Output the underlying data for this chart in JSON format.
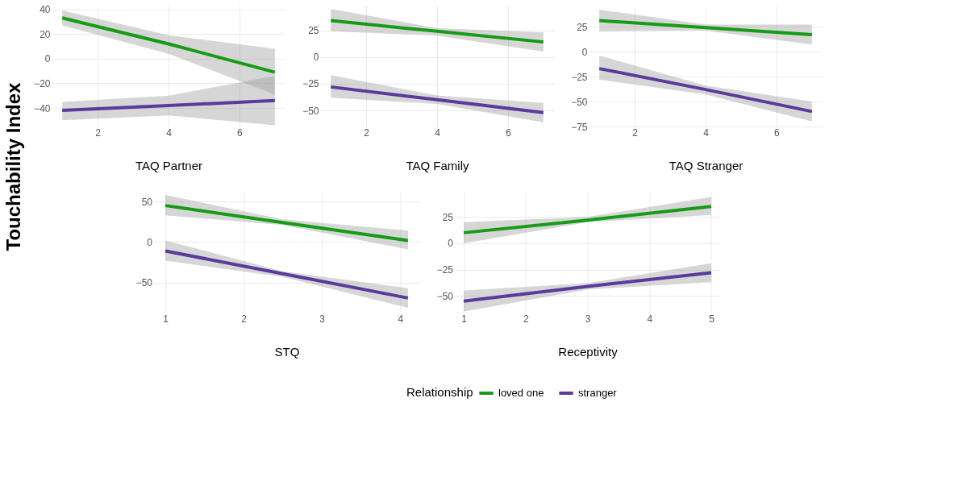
{
  "chart_data": [
    {
      "type": "line",
      "xlabel": "TAQ Partner",
      "ylabel": "Touchability Index",
      "legend": "bottom",
      "legend_title": "Relationship",
      "grid": true,
      "xlim": [
        0.7,
        7.3
      ],
      "xticks": [
        2,
        4,
        6
      ],
      "ylim": [
        -55,
        43
      ],
      "yticks": [
        -40,
        -20,
        0,
        20,
        40
      ],
      "x": [
        1,
        4,
        7
      ],
      "series": [
        {
          "name": "loved one",
          "color": "#169b16",
          "values": [
            33,
            12,
            -11
          ],
          "lower": [
            27,
            4,
            -29
          ],
          "upper": [
            39,
            19,
            8
          ]
        },
        {
          "name": "stranger",
          "color": "#5b3a9b",
          "values": [
            -42,
            -38,
            -34
          ],
          "lower": [
            -50,
            -46,
            -54
          ],
          "upper": [
            -35,
            -30,
            -14
          ]
        }
      ]
    },
    {
      "type": "line",
      "xlabel": "TAQ Family",
      "grid": true,
      "xlim": [
        0.7,
        7.3
      ],
      "xticks": [
        2,
        4,
        6
      ],
      "ylim": [
        -65,
        48
      ],
      "yticks": [
        -50,
        -25,
        0,
        25
      ],
      "x": [
        1,
        4,
        7
      ],
      "series": [
        {
          "name": "loved one",
          "color": "#169b16",
          "values": [
            34,
            24,
            14
          ],
          "lower": [
            24,
            20,
            5
          ],
          "upper": [
            45,
            27,
            23
          ]
        },
        {
          "name": "stranger",
          "color": "#5b3a9b",
          "values": [
            -28,
            -40,
            -52
          ],
          "lower": [
            -38,
            -44,
            -61
          ],
          "upper": [
            -17,
            -36,
            -43
          ]
        }
      ]
    },
    {
      "type": "line",
      "xlabel": "TAQ Stranger",
      "grid": true,
      "xlim": [
        0.7,
        7.3
      ],
      "xticks": [
        2,
        4,
        6
      ],
      "ylim": [
        -75,
        46
      ],
      "yticks": [
        -75,
        -50,
        -25,
        0,
        25
      ],
      "x": [
        1,
        4,
        7
      ],
      "series": [
        {
          "name": "loved one",
          "color": "#169b16",
          "values": [
            31,
            24,
            17
          ],
          "lower": [
            20,
            21,
            7
          ],
          "upper": [
            42,
            27,
            27
          ]
        },
        {
          "name": "stranger",
          "color": "#5b3a9b",
          "values": [
            -17,
            -38,
            -60
          ],
          "lower": [
            -28,
            -43,
            -70
          ],
          "upper": [
            -4,
            -34,
            -50
          ]
        }
      ]
    },
    {
      "type": "line",
      "xlabel": "STQ",
      "grid": true,
      "xlim": [
        0.85,
        4.25
      ],
      "xticks": [
        1,
        2,
        3,
        4
      ],
      "ylim": [
        -87,
        62
      ],
      "yticks": [
        -50,
        0,
        50
      ],
      "x": [
        1,
        2.5,
        4.1
      ],
      "series": [
        {
          "name": "loved one",
          "color": "#169b16",
          "values": [
            45,
            24,
            2
          ],
          "lower": [
            33,
            21,
            -9
          ],
          "upper": [
            58,
            28,
            14
          ]
        },
        {
          "name": "stranger",
          "color": "#5b3a9b",
          "values": [
            -11,
            -39,
            -69
          ],
          "lower": [
            -23,
            -43,
            -81
          ],
          "upper": [
            2,
            -36,
            -57
          ]
        }
      ]
    },
    {
      "type": "line",
      "xlabel": "Receptivity",
      "grid": true,
      "xlim": [
        0.85,
        5.15
      ],
      "xticks": [
        1,
        2,
        3,
        4,
        5
      ],
      "ylim": [
        -66,
        49
      ],
      "yticks": [
        -50,
        -25,
        0,
        25
      ],
      "x": [
        1,
        3,
        5
      ],
      "series": [
        {
          "name": "loved one",
          "color": "#169b16",
          "values": [
            10,
            22,
            35
          ],
          "lower": [
            0,
            20,
            27
          ],
          "upper": [
            20,
            25,
            44
          ]
        },
        {
          "name": "stranger",
          "color": "#5b3a9b",
          "values": [
            -55,
            -41,
            -28
          ],
          "lower": [
            -65,
            -44,
            -37
          ],
          "upper": [
            -45,
            -38,
            -19
          ]
        }
      ]
    }
  ]
}
